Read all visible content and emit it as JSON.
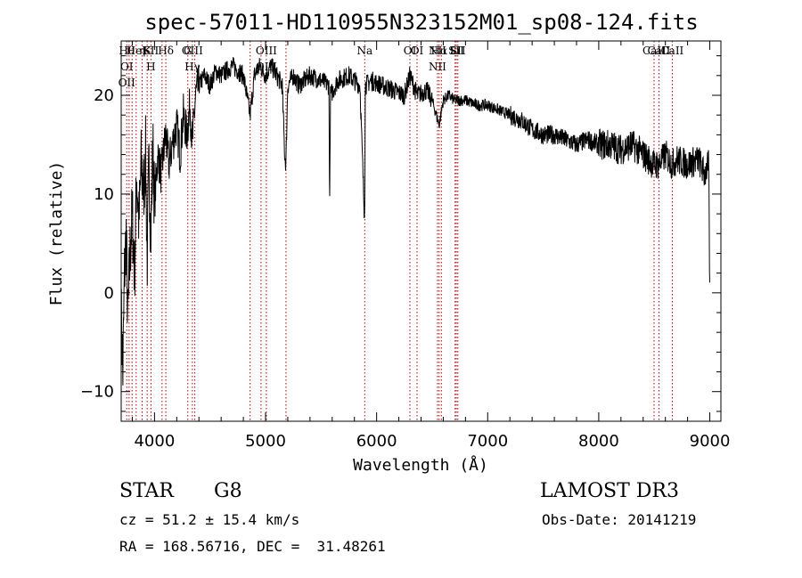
{
  "chart_data": {
    "type": "line",
    "title": "spec-57011-HD110955N323152M01_sp08-124.fits",
    "xlabel": "Wavelength (Å)",
    "ylabel": "Flux (relative)",
    "xlim": [
      3700,
      9100
    ],
    "ylim": [
      -13,
      25.5
    ],
    "xticks": [
      4000,
      5000,
      6000,
      7000,
      8000,
      9000
    ],
    "yticks": [
      -10,
      0,
      10,
      20
    ],
    "grid": false,
    "line_color": "#000000",
    "marker_color": "#aa0000",
    "spectrum": {
      "x": [
        3700,
        3715,
        3730,
        3745,
        3760,
        3780,
        3800,
        3820,
        3840,
        3860,
        3880,
        3900,
        3920,
        3934,
        3950,
        3968,
        3985,
        4000,
        4030,
        4060,
        4100,
        4130,
        4160,
        4200,
        4230,
        4260,
        4290,
        4320,
        4340,
        4370,
        4400,
        4450,
        4500,
        4550,
        4600,
        4700,
        4800,
        4861,
        4900,
        4950,
        5000,
        5050,
        5100,
        5150,
        5172,
        5183,
        5200,
        5250,
        5300,
        5400,
        5500,
        5570,
        5577,
        5585,
        5650,
        5750,
        5850,
        5889,
        5893,
        5898,
        5950,
        6050,
        6150,
        6250,
        6300,
        6364,
        6450,
        6500,
        6563,
        6600,
        6650,
        6700,
        6800,
        6900,
        7000,
        7100,
        7200,
        7300,
        7400,
        7500,
        7600,
        7700,
        7800,
        7900,
        8000,
        8100,
        8200,
        8300,
        8400,
        8498,
        8542,
        8600,
        8662,
        8700,
        8800,
        8900,
        8950,
        8990,
        9000
      ],
      "y": [
        -2,
        -8,
        2,
        6,
        -3,
        4,
        8,
        2,
        12,
        7,
        13,
        10,
        14,
        3,
        13,
        6,
        15,
        9,
        14,
        12,
        16,
        13,
        15,
        17,
        14,
        18,
        16,
        19,
        15,
        20,
        21,
        22,
        21,
        22.5,
        22,
        23,
        22,
        18,
        22,
        23,
        22,
        23,
        22,
        21,
        14,
        13,
        21,
        22,
        21,
        22,
        21.5,
        21,
        9,
        20,
        21.5,
        22,
        21,
        8,
        10,
        21,
        21.5,
        21,
        20.5,
        20,
        22,
        20,
        20.5,
        19.5,
        17,
        19.5,
        20,
        19.5,
        19.5,
        19,
        19,
        18.5,
        18,
        17.5,
        16.5,
        16,
        16,
        15.5,
        15,
        15.5,
        15,
        15,
        14.5,
        15,
        14,
        13,
        13,
        14,
        13,
        13.5,
        13,
        13.5,
        12,
        13,
        0
      ]
    },
    "lines": [
      {
        "x": 3750,
        "labels": [
          "Hθ",
          "OI",
          "OII"
        ]
      },
      {
        "x": 3771,
        "labels": []
      },
      {
        "x": 3798,
        "labels": []
      },
      {
        "x": 3835,
        "labels": [
          "HeI"
        ]
      },
      {
        "x": 3889,
        "labels": [
          "η"
        ]
      },
      {
        "x": 3934,
        "labels": [
          "K"
        ]
      },
      {
        "x": 3968,
        "labels": [
          "SII",
          "H"
        ]
      },
      {
        "x": 4068,
        "labels": []
      },
      {
        "x": 4102,
        "labels": [
          "Hδ"
        ]
      },
      {
        "x": 4300,
        "labels": [
          "G"
        ]
      },
      {
        "x": 4341,
        "labels": [
          "OIII",
          "Hγ"
        ]
      },
      {
        "x": 4363,
        "labels": []
      },
      {
        "x": 4861,
        "labels": []
      },
      {
        "x": 4959,
        "labels": []
      },
      {
        "x": 5007,
        "labels": [
          "OIII",
          "OIII"
        ]
      },
      {
        "x": 5184,
        "labels": []
      },
      {
        "x": 5893,
        "labels": [
          "Na"
        ]
      },
      {
        "x": 6300,
        "labels": [
          "OI"
        ]
      },
      {
        "x": 6364,
        "labels": [
          "OI"
        ]
      },
      {
        "x": 6548,
        "labels": [
          "NII",
          "NII"
        ]
      },
      {
        "x": 6563,
        "labels": [
          "Hα"
        ]
      },
      {
        "x": 6583,
        "labels": []
      },
      {
        "x": 6707,
        "labels": [
          "Li"
        ]
      },
      {
        "x": 6717,
        "labels": [
          "SII"
        ]
      },
      {
        "x": 6731,
        "labels": [
          "SII"
        ]
      },
      {
        "x": 8498,
        "labels": [
          "CaII"
        ]
      },
      {
        "x": 8542,
        "labels": [
          "CaII"
        ]
      },
      {
        "x": 8662,
        "labels": [
          "CaII"
        ]
      }
    ]
  },
  "info": {
    "class_label": "STAR",
    "subclass": "G8",
    "cz_text": "cz = 51.2 ± 15.4 km/s",
    "radec_text": "RA = 168.56716, DEC =  31.48261",
    "survey": "LAMOST DR3",
    "obs_date": "Obs-Date: 20141219"
  }
}
